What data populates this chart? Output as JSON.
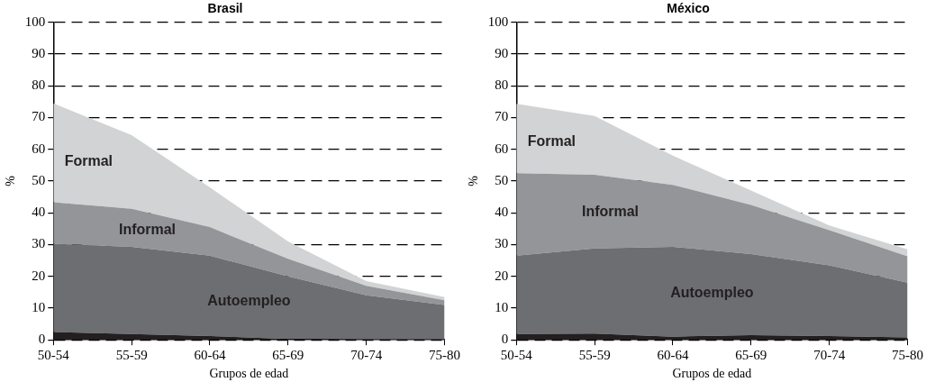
{
  "chart_data": [
    {
      "type": "area",
      "title": "Brasil",
      "xlabel": "Grupos de edad",
      "ylabel": "%",
      "stacked": true,
      "grid": "y",
      "legend": false,
      "categories": [
        "50-54",
        "55-59",
        "60-64",
        "65-69",
        "70-74",
        "75-80"
      ],
      "ylim": [
        0,
        100
      ],
      "yticks": [
        0,
        10,
        20,
        30,
        40,
        50,
        60,
        70,
        80,
        90,
        100
      ],
      "series": [
        {
          "color": "#231f20",
          "values": [
            2.5,
            1.8,
            1.2,
            0.3,
            0.1,
            0.1
          ]
        },
        {
          "name": "Autoempleo",
          "color": "#6d6e71",
          "values": [
            27.8,
            27.5,
            25.3,
            19.7,
            13.9,
            10.9
          ]
        },
        {
          "name": "Informal",
          "color": "#939598",
          "values": [
            13,
            12,
            9,
            5.5,
            3,
            1.5
          ]
        },
        {
          "name": "Formal",
          "color": "#d1d3d4",
          "values": [
            31.2,
            23.2,
            12.5,
            5.5,
            1.5,
            1
          ]
        }
      ]
    },
    {
      "type": "area",
      "title": "México",
      "xlabel": "Grupos de edad",
      "ylabel": "%",
      "stacked": true,
      "grid": "y",
      "legend": false,
      "categories": [
        "50-54",
        "55-59",
        "60-64",
        "65-69",
        "70-74",
        "75-80"
      ],
      "ylim": [
        0,
        100
      ],
      "yticks": [
        0,
        10,
        20,
        30,
        40,
        50,
        60,
        70,
        80,
        90,
        100
      ],
      "series": [
        {
          "color": "#231f20",
          "values": [
            1.8,
            2,
            1,
            1.5,
            1.2,
            0.8
          ]
        },
        {
          "name": "Autoempleo",
          "color": "#6d6e71",
          "values": [
            24.7,
            26.8,
            28.3,
            25.5,
            22.3,
            17.2
          ]
        },
        {
          "name": "Informal",
          "color": "#939598",
          "values": [
            26,
            23.2,
            19.5,
            15.5,
            11,
            8.3
          ]
        },
        {
          "name": "Formal",
          "color": "#d1d3d4",
          "values": [
            21.8,
            18.5,
            9.2,
            4.5,
            1.5,
            2.2
          ]
        }
      ]
    }
  ]
}
